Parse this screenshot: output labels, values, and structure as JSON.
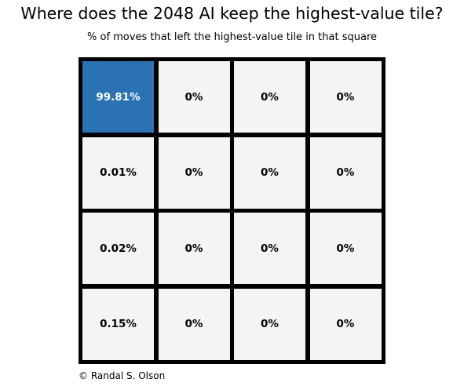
{
  "title": "Where does the 2048 AI keep the highest-value tile?",
  "subtitle": "% of moves that left the highest-value tile in that square",
  "credit": "© Randal S. Olson",
  "colors": {
    "highlight_fill": "#2b72b2",
    "highlight_text": "#ffffff",
    "cell_fill": "#f4f4f4",
    "cell_text": "#000000",
    "border": "#000000"
  },
  "chart_data": {
    "type": "heatmap",
    "rows": 4,
    "cols": 4,
    "unit": "%",
    "values": [
      [
        99.81,
        0,
        0,
        0
      ],
      [
        0.01,
        0,
        0,
        0
      ],
      [
        0.02,
        0,
        0,
        0
      ],
      [
        0.15,
        0,
        0,
        0
      ]
    ],
    "labels": [
      [
        "99.81%",
        "0%",
        "0%",
        "0%"
      ],
      [
        "0.01%",
        "0%",
        "0%",
        "0%"
      ],
      [
        "0.02%",
        "0%",
        "0%",
        "0%"
      ],
      [
        "0.15%",
        "0%",
        "0%",
        "0%"
      ]
    ],
    "grid": true,
    "legend": "none"
  }
}
